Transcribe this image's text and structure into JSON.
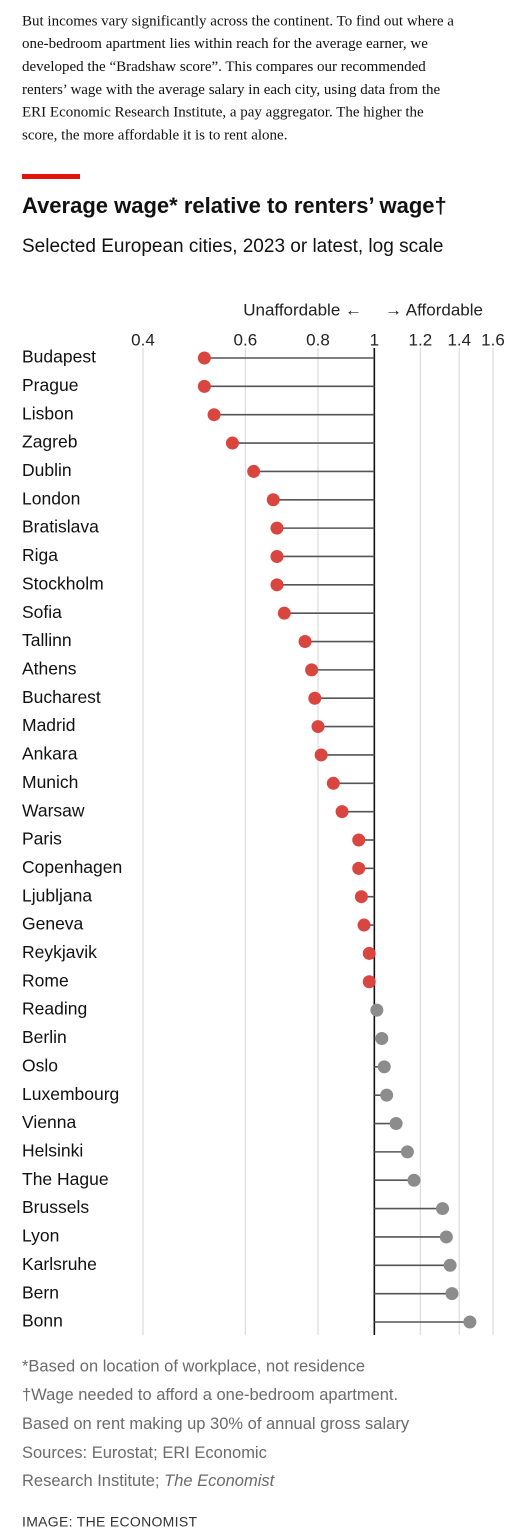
{
  "intro": [
    "But incomes vary significantly across the continent. To find out where a",
    "one-bedroom apartment lies within reach for the average earner, we",
    "developed the “Bradshaw score”. This compares our recommended",
    "renters’ wage with the average salary in each city, using data from the",
    "ERI Economic Research Institute, a pay aggregator. The higher the",
    "score, the more affordable it is to rent alone."
  ],
  "chart_data": {
    "type": "lollipop",
    "title": "Average wage* relative to renters’ wage†",
    "subtitle": "Selected European cities, 2023 or latest, log scale",
    "annotations": {
      "left": "Unaffordable ←",
      "right": "→ Affordable"
    },
    "categories": [
      "Budapest",
      "Prague",
      "Lisbon",
      "Zagreb",
      "Dublin",
      "London",
      "Bratislava",
      "Riga",
      "Stockholm",
      "Sofia",
      "Tallinn",
      "Athens",
      "Bucharest",
      "Madrid",
      "Ankara",
      "Munich",
      "Warsaw",
      "Paris",
      "Copenhagen",
      "Ljubljana",
      "Geneva",
      "Reykjavik",
      "Rome",
      "Reading",
      "Berlin",
      "Oslo",
      "Luxembourg",
      "Vienna",
      "Helsinki",
      "The Hague",
      "Brussels",
      "Lyon",
      "Karlsruhe",
      "Bern",
      "Bonn"
    ],
    "values": [
      0.51,
      0.51,
      0.53,
      0.57,
      0.62,
      0.67,
      0.68,
      0.68,
      0.68,
      0.7,
      0.76,
      0.78,
      0.79,
      0.8,
      0.81,
      0.85,
      0.88,
      0.94,
      0.94,
      0.95,
      0.96,
      0.98,
      0.98,
      1.01,
      1.03,
      1.04,
      1.05,
      1.09,
      1.14,
      1.17,
      1.31,
      1.33,
      1.35,
      1.36,
      1.46
    ],
    "baseline": 1,
    "log_scale": true,
    "xlim": [
      0.4,
      1.6
    ],
    "xticks": [
      0.4,
      0.6,
      0.8,
      1,
      1.2,
      1.4,
      1.6
    ],
    "grid": true,
    "colors": {
      "unaffordable": "#d9463f",
      "affordable": "#8c8c8c",
      "stem": "#555555",
      "accent": "#e3120b"
    }
  },
  "notes": [
    "*Based on location of workplace, not residence",
    "†Wage needed to afford a one-bedroom apartment.",
    "Based on rent making up 30% of annual gross salary",
    "Sources: Eurostat; ERI Economic"
  ],
  "source_line": [
    "Research Institute; ",
    "The Economist"
  ],
  "footer": "IMAGE: THE ECONOMIST"
}
